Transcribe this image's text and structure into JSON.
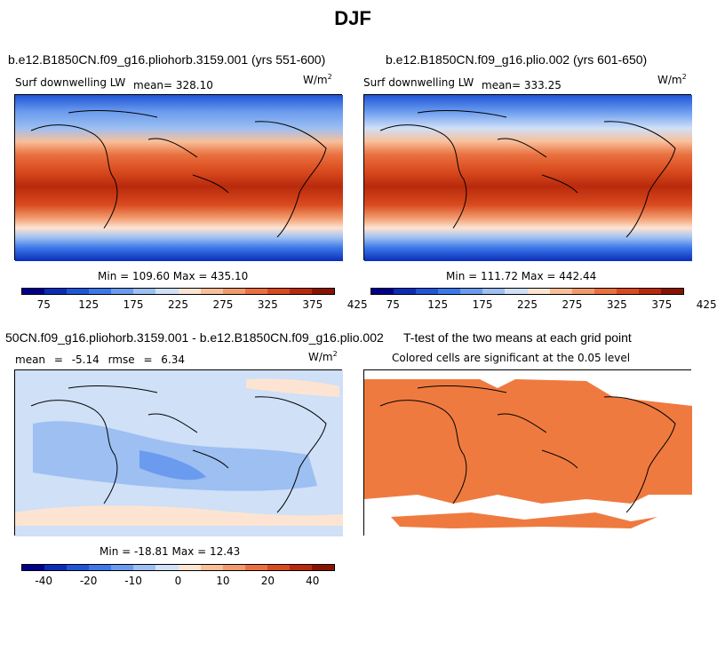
{
  "page_title": "DJF",
  "panels": {
    "p1": {
      "title": "b.e12.B1850CN.f09_g16.pliohorb.3159.001 (yrs 551-600)",
      "left_label": "Surf downwelling LW",
      "center_label": "mean= 328.10",
      "units_base": "W/m",
      "units_exp": "2",
      "stats": "Min = 109.60 Max = 435.10",
      "ticks": [
        "75",
        "125",
        "175",
        "225",
        "275",
        "325",
        "375",
        "425"
      ]
    },
    "p2": {
      "title": "b.e12.B1850CN.f09_g16.plio.002 (yrs 601-650)",
      "left_label": "Surf downwelling LW",
      "center_label": "mean= 333.25",
      "units_base": "W/m",
      "units_exp": "2",
      "stats": "Min = 111.72 Max = 442.44",
      "ticks": [
        "75",
        "125",
        "175",
        "225",
        "275",
        "325",
        "375",
        "425"
      ]
    },
    "p3": {
      "title": "50CN.f09_g16.pliohorb.3159.001 - b.e12.B1850CN.f09_g16.plio.002",
      "left_label": "mean = -5.14 rmse = 6.34",
      "units_base": "W/m",
      "units_exp": "2",
      "stats": "Min = -18.81 Max = 12.43",
      "ticks": [
        "-40",
        "-20",
        "-10",
        "0",
        "10",
        "20",
        "40"
      ]
    },
    "p4": {
      "title": "T-test of the two means at each grid point",
      "center_label": "Colored cells are significant at the 0.05 level"
    }
  },
  "colors": {
    "abs_scale": [
      "#00008a",
      "#0a2db8",
      "#1f55d6",
      "#3c78e8",
      "#6a9bee",
      "#9dbff2",
      "#cfe0f7",
      "#fde4d2",
      "#f8bf9a",
      "#f29a6d",
      "#e9703f",
      "#d94a1e",
      "#b82a0c",
      "#8a1200"
    ],
    "diff_scale": [
      "#00008a",
      "#0a2db8",
      "#1f55d6",
      "#3c78e8",
      "#6a9bee",
      "#9dbff2",
      "#cfe0f7",
      "#fde4d2",
      "#f8bf9a",
      "#f29a6d",
      "#e9703f",
      "#d94a1e",
      "#b82a0c",
      "#8a1200"
    ],
    "significant": "#ef7a3f"
  },
  "chart_data": [
    {
      "type": "heatmap",
      "title": "b.e12.B1850CN.f09_g16.pliohorb.3159.001 (yrs 551-600)",
      "variable": "Surf downwelling LW",
      "units": "W/m2",
      "mean": 328.1,
      "min": 109.6,
      "max": 435.1,
      "colorbar_ticks": [
        75,
        125,
        175,
        225,
        275,
        325,
        375,
        425
      ]
    },
    {
      "type": "heatmap",
      "title": "b.e12.B1850CN.f09_g16.plio.002 (yrs 601-650)",
      "variable": "Surf downwelling LW",
      "units": "W/m2",
      "mean": 333.25,
      "min": 111.72,
      "max": 442.44,
      "colorbar_ticks": [
        75,
        125,
        175,
        225,
        275,
        325,
        375,
        425
      ]
    },
    {
      "type": "heatmap",
      "title": "50CN.f09_g16.pliohorb.3159.001 - b.e12.B1850CN.f09_g16.plio.002",
      "units": "W/m2",
      "mean": -5.14,
      "rmse": 6.34,
      "min": -18.81,
      "max": 12.43,
      "colorbar_ticks": [
        -40,
        -20,
        -10,
        0,
        10,
        20,
        40
      ]
    },
    {
      "type": "heatmap",
      "title": "T-test of the two means at each grid point",
      "significance_level": 0.05
    }
  ]
}
